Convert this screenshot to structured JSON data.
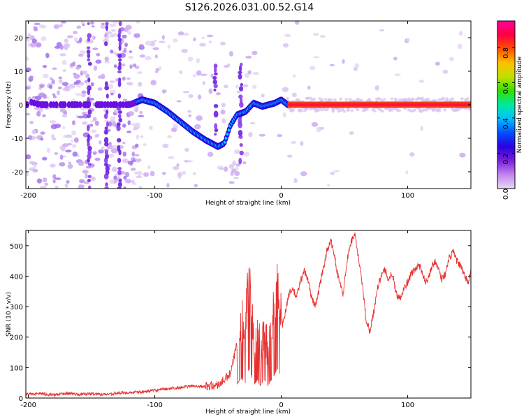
{
  "chart_data": [
    {
      "type": "heatmap",
      "title": "S126.2026.031.00.52.G14",
      "xlabel": "Height of straight line (km)",
      "ylabel": "Frequency (Hz)",
      "xlim": [
        -202,
        150
      ],
      "ylim": [
        -25,
        25
      ],
      "xticks": [
        -200,
        -100,
        0,
        100
      ],
      "yticks": [
        -20,
        -10,
        0,
        10,
        20
      ],
      "colorbar": {
        "label": "Normalized spectral amplitude",
        "range": [
          0.0,
          0.95
        ],
        "ticks": [
          0.0,
          0.2,
          0.4,
          0.6,
          0.8
        ],
        "tick_labels": [
          "0.0",
          "0.2",
          "0.4",
          "0.6",
          "0.8"
        ],
        "colors": [
          "#e8d8f0",
          "#c084f0",
          "#7a20d8",
          "#2a00e0",
          "#0050ff",
          "#00c0ff",
          "#00e8a0",
          "#30e000",
          "#c0e000",
          "#ffc000",
          "#ff5000",
          "#ff0040",
          "#ff00a0"
        ]
      },
      "ridge": [
        {
          "x": -200,
          "y": 1.0
        },
        {
          "x": -190,
          "y": 0.0
        },
        {
          "x": -180,
          "y": 0.0
        },
        {
          "x": -160,
          "y": 0.0
        },
        {
          "x": -140,
          "y": 0.0
        },
        {
          "x": -120,
          "y": 0.0
        },
        {
          "x": -110,
          "y": 1.5
        },
        {
          "x": -100,
          "y": 0.5
        },
        {
          "x": -90,
          "y": -2.0
        },
        {
          "x": -80,
          "y": -5.0
        },
        {
          "x": -70,
          "y": -8.0
        },
        {
          "x": -60,
          "y": -10.5
        },
        {
          "x": -50,
          "y": -12.5
        },
        {
          "x": -45,
          "y": -11.5
        },
        {
          "x": -40,
          "y": -6.0
        },
        {
          "x": -35,
          "y": -3.0
        },
        {
          "x": -28,
          "y": -2.0
        },
        {
          "x": -22,
          "y": 0.5
        },
        {
          "x": -15,
          "y": -0.5
        },
        {
          "x": -5,
          "y": 0.5
        },
        {
          "x": 0,
          "y": 1.5
        },
        {
          "x": 5,
          "y": 0.0
        },
        {
          "x": 150,
          "y": 0.0
        }
      ],
      "scatter_features": [
        {
          "x": -152,
          "y_from": -25,
          "y_to": 25
        },
        {
          "x": -138,
          "y_from": -25,
          "y_to": 25
        },
        {
          "x": -128,
          "y_from": -25,
          "y_to": 25
        },
        {
          "x": -32,
          "y_from": -18,
          "y_to": 12
        },
        {
          "x": -52,
          "y_from": -10,
          "y_to": 12
        }
      ]
    },
    {
      "type": "line",
      "title": "",
      "xlabel": "Height of straight line (km)",
      "ylabel": "SNR (10 * v/v)",
      "xlim": [
        -202,
        150
      ],
      "ylim": [
        0,
        550
      ],
      "xticks": [
        -200,
        -100,
        0,
        100
      ],
      "yticks": [
        0,
        100,
        200,
        300,
        400,
        500
      ],
      "series": [
        {
          "name": "SNR",
          "color": "#e83030",
          "x": [
            -202,
            -190,
            -180,
            -170,
            -160,
            -150,
            -140,
            -130,
            -120,
            -110,
            -100,
            -90,
            -80,
            -70,
            -60,
            -50,
            -45,
            -40,
            -36,
            -33,
            -31,
            -29,
            -27,
            -25,
            -23,
            -21,
            -19,
            -17,
            -15,
            -13,
            -11,
            -9,
            -7,
            -5,
            -3,
            -1,
            1,
            3,
            6,
            9,
            12,
            15,
            18,
            21,
            24,
            27,
            30,
            33,
            36,
            39,
            42,
            44,
            46,
            49,
            52,
            55,
            58,
            61,
            64,
            67,
            70,
            73,
            76,
            79,
            82,
            85,
            88,
            91,
            94,
            97,
            100,
            103,
            106,
            109,
            112,
            115,
            118,
            121,
            124,
            127,
            130,
            133,
            136,
            139,
            142,
            145,
            148,
            150
          ],
          "y": [
            12,
            15,
            10,
            16,
            12,
            14,
            12,
            16,
            18,
            20,
            25,
            30,
            35,
            40,
            38,
            42,
            60,
            80,
            160,
            230,
            260,
            150,
            340,
            380,
            250,
            180,
            240,
            160,
            200,
            240,
            150,
            210,
            260,
            320,
            380,
            300,
            240,
            280,
            340,
            360,
            330,
            380,
            420,
            390,
            330,
            300,
            360,
            420,
            480,
            520,
            470,
            420,
            380,
            340,
            450,
            510,
            540,
            460,
            380,
            260,
            220,
            280,
            360,
            400,
            420,
            390,
            410,
            340,
            330,
            360,
            380,
            410,
            420,
            440,
            400,
            380,
            420,
            450,
            430,
            390,
            410,
            460,
            480,
            450,
            430,
            400,
            380,
            420
          ]
        }
      ]
    }
  ]
}
